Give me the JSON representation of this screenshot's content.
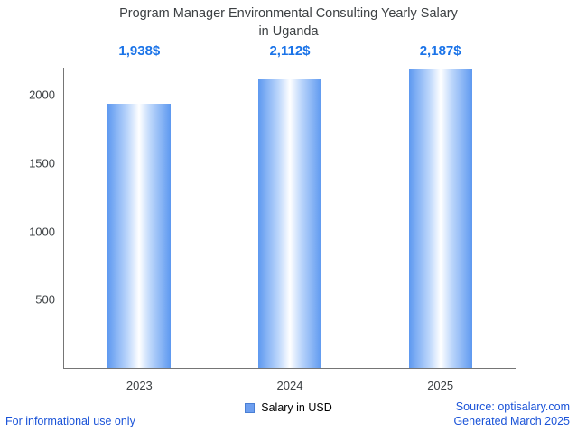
{
  "title": {
    "line1": "Program Manager Environmental Consulting Yearly Salary",
    "line2": "in Uganda"
  },
  "legend": {
    "label": "Salary in USD"
  },
  "footer": {
    "disclaimer": "For informational use only",
    "source": "Source: optisalary.com",
    "generated": "Generated March 2025"
  },
  "chart_data": {
    "type": "bar",
    "title": "Program Manager Environmental Consulting Yearly Salary in Uganda",
    "categories": [
      "2023",
      "2024",
      "2025"
    ],
    "values": [
      1938,
      2112,
      2187
    ],
    "value_labels": [
      "1,938$",
      "2,112$",
      "2,187$"
    ],
    "series_name": "Salary in USD",
    "xlabel": "",
    "ylabel": "",
    "ylim": [
      0,
      2200
    ],
    "yticks": [
      500,
      1000,
      1500,
      2000
    ],
    "grid": false,
    "legend_position": "bottom",
    "colors": {
      "bar_edge": "#5e99f0",
      "bar_mid": "#bcd6fb",
      "bar_center": "#ffffff",
      "legend_swatch": "#6d9ff0",
      "value_label": "#1a73e8",
      "axis": "#757575",
      "title_text": "#3c4043",
      "footer_link": "#1a53d8"
    }
  }
}
